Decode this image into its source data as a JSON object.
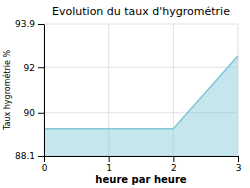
{
  "chart_data": {
    "type": "area",
    "title": "Evolution du taux d'hygrométrie",
    "xlabel": "heure par heure",
    "ylabel": "Taux hygrométrie %",
    "x": [
      0,
      2,
      3
    ],
    "values": [
      89.3,
      89.3,
      92.5
    ],
    "color": "#7ec8d8",
    "xlim": [
      0,
      3
    ],
    "ylim": [
      88.1,
      93.9
    ],
    "xticks": [
      0,
      1,
      2,
      3
    ],
    "yticks": [
      88.1,
      90,
      92,
      93.9
    ],
    "grid": true
  }
}
